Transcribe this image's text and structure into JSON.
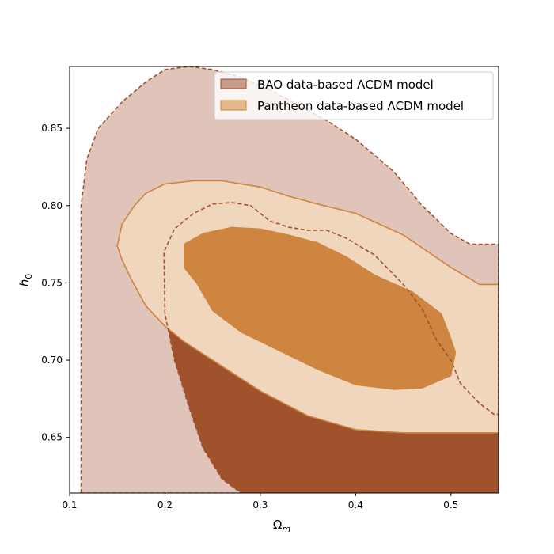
{
  "chart_data": {
    "type": "contour",
    "xlabel": "Ω",
    "xlabel_sub": "m",
    "ylabel": "h",
    "ylabel_sub": "0",
    "xlim": [
      0.1,
      0.55
    ],
    "ylim": [
      0.614,
      0.89
    ],
    "xticks": [
      {
        "value": 0.1,
        "label": "0.1"
      },
      {
        "value": 0.2,
        "label": "0.2"
      },
      {
        "value": 0.3,
        "label": "0.3"
      },
      {
        "value": 0.4,
        "label": "0.4"
      },
      {
        "value": 0.5,
        "label": "0.5"
      }
    ],
    "yticks": [
      {
        "value": 0.65,
        "label": "0.65"
      },
      {
        "value": 0.7,
        "label": "0.70"
      },
      {
        "value": 0.75,
        "label": "0.75"
      },
      {
        "value": 0.8,
        "label": "0.80"
      },
      {
        "value": 0.85,
        "label": "0.85"
      }
    ],
    "grid": false,
    "legend_position": "top-right",
    "series": [
      {
        "name": "BAO data-based ΛCDM model",
        "color": "#a0522d",
        "outer_fill": "#e0c4b9",
        "inner_fill": "#a0522d",
        "line_style": "dashed",
        "legend_swatch": "#c79b89",
        "contours": {
          "outer_2sigma": [
            [
              0.112,
              0.614
            ],
            [
              0.112,
              0.8
            ],
            [
              0.118,
              0.83
            ],
            [
              0.13,
              0.85
            ],
            [
              0.155,
              0.867
            ],
            [
              0.18,
              0.88
            ],
            [
              0.2,
              0.888
            ],
            [
              0.225,
              0.89
            ],
            [
              0.25,
              0.888
            ],
            [
              0.28,
              0.883
            ],
            [
              0.31,
              0.875
            ],
            [
              0.34,
              0.865
            ],
            [
              0.37,
              0.855
            ],
            [
              0.4,
              0.843
            ],
            [
              0.44,
              0.822
            ],
            [
              0.47,
              0.8
            ],
            [
              0.5,
              0.782
            ],
            [
              0.52,
              0.775
            ],
            [
              0.55,
              0.775
            ],
            [
              0.55,
              0.614
            ]
          ],
          "inner_1sigma": [
            [
              0.2,
              0.73
            ],
            [
              0.199,
              0.77
            ],
            [
              0.21,
              0.785
            ],
            [
              0.23,
              0.795
            ],
            [
              0.25,
              0.801
            ],
            [
              0.27,
              0.802
            ],
            [
              0.29,
              0.8
            ],
            [
              0.31,
              0.79
            ],
            [
              0.33,
              0.786
            ],
            [
              0.35,
              0.784
            ],
            [
              0.37,
              0.784
            ],
            [
              0.39,
              0.779
            ],
            [
              0.42,
              0.768
            ],
            [
              0.45,
              0.749
            ],
            [
              0.47,
              0.733
            ],
            [
              0.485,
              0.713
            ],
            [
              0.5,
              0.7
            ],
            [
              0.51,
              0.685
            ],
            [
              0.53,
              0.672
            ],
            [
              0.545,
              0.665
            ],
            [
              0.55,
              0.665
            ],
            [
              0.55,
              0.614
            ],
            [
              0.28,
              0.614
            ],
            [
              0.26,
              0.623
            ],
            [
              0.24,
              0.643
            ],
            [
              0.225,
              0.67
            ],
            [
              0.21,
              0.7
            ],
            [
              0.2,
              0.73
            ]
          ]
        }
      },
      {
        "name": "Pantheon data-based ΛCDM model",
        "color": "#cd8540",
        "outer_fill": "#f0d6bd",
        "inner_fill": "#cd8540",
        "line_style": "solid",
        "legend_swatch": "#e3b68c",
        "contours": {
          "outer_2sigma": [
            [
              0.15,
              0.774
            ],
            [
              0.155,
              0.788
            ],
            [
              0.168,
              0.8
            ],
            [
              0.18,
              0.808
            ],
            [
              0.2,
              0.814
            ],
            [
              0.23,
              0.816
            ],
            [
              0.26,
              0.816
            ],
            [
              0.3,
              0.812
            ],
            [
              0.33,
              0.806
            ],
            [
              0.36,
              0.801
            ],
            [
              0.4,
              0.795
            ],
            [
              0.45,
              0.781
            ],
            [
              0.5,
              0.76
            ],
            [
              0.53,
              0.749
            ],
            [
              0.55,
              0.749
            ],
            [
              0.55,
              0.653
            ],
            [
              0.45,
              0.653
            ],
            [
              0.4,
              0.655
            ],
            [
              0.35,
              0.664
            ],
            [
              0.3,
              0.68
            ],
            [
              0.25,
              0.7
            ],
            [
              0.22,
              0.712
            ],
            [
              0.2,
              0.722
            ],
            [
              0.18,
              0.735
            ],
            [
              0.165,
              0.752
            ],
            [
              0.155,
              0.765
            ],
            [
              0.15,
              0.774
            ]
          ],
          "inner_1sigma": [
            [
              0.22,
              0.775
            ],
            [
              0.24,
              0.782
            ],
            [
              0.27,
              0.786
            ],
            [
              0.3,
              0.785
            ],
            [
              0.33,
              0.781
            ],
            [
              0.36,
              0.776
            ],
            [
              0.39,
              0.767
            ],
            [
              0.42,
              0.755
            ],
            [
              0.46,
              0.744
            ],
            [
              0.49,
              0.73
            ],
            [
              0.5,
              0.714
            ],
            [
              0.505,
              0.705
            ],
            [
              0.5,
              0.69
            ],
            [
              0.47,
              0.682
            ],
            [
              0.44,
              0.681
            ],
            [
              0.4,
              0.684
            ],
            [
              0.36,
              0.694
            ],
            [
              0.32,
              0.706
            ],
            [
              0.28,
              0.718
            ],
            [
              0.25,
              0.732
            ],
            [
              0.233,
              0.75
            ],
            [
              0.22,
              0.76
            ],
            [
              0.22,
              0.775
            ]
          ]
        }
      }
    ]
  }
}
